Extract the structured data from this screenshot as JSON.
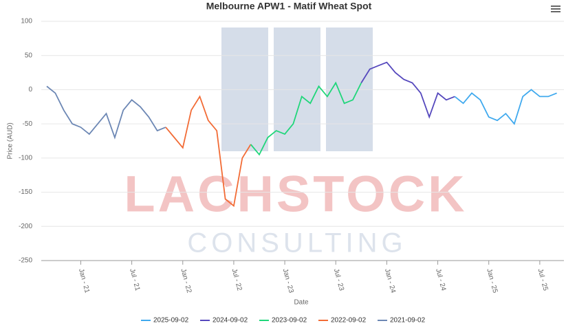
{
  "chart_data": {
    "type": "line",
    "title": "Melbourne APW1 - Matif Wheat Spot",
    "y_label": "Price (AUD)",
    "x_label": "Date",
    "watermark": [
      "LACHSTOCK",
      "CONSULTING"
    ],
    "x": [
      "2020-09",
      "2020-10",
      "2020-11",
      "2020-12",
      "2021-01",
      "2021-02",
      "2021-03",
      "2021-04",
      "2021-05",
      "2021-06",
      "2021-07",
      "2021-08",
      "2021-09",
      "2021-10",
      "2021-11",
      "2021-12",
      "2022-01",
      "2022-02",
      "2022-03",
      "2022-04",
      "2022-05",
      "2022-06",
      "2022-07",
      "2022-08",
      "2022-09",
      "2022-10",
      "2022-11",
      "2022-12",
      "2023-01",
      "2023-02",
      "2023-03",
      "2023-04",
      "2023-05",
      "2023-06",
      "2023-07",
      "2023-08",
      "2023-09",
      "2023-10",
      "2023-11",
      "2023-12",
      "2024-01",
      "2024-02",
      "2024-03",
      "2024-04",
      "2024-05",
      "2024-06",
      "2024-07",
      "2024-08",
      "2024-09",
      "2024-10",
      "2024-11",
      "2024-12",
      "2025-01",
      "2025-02",
      "2025-03",
      "2025-04",
      "2025-05",
      "2025-06",
      "2025-07",
      "2025-08",
      "2025-09"
    ],
    "xticks": [
      {
        "value": "2021-01",
        "label": "Jan - 21"
      },
      {
        "value": "2021-07",
        "label": "Jul - 21"
      },
      {
        "value": "2022-01",
        "label": "Jan - 22"
      },
      {
        "value": "2022-07",
        "label": "Jul - 22"
      },
      {
        "value": "2023-01",
        "label": "Jan - 23"
      },
      {
        "value": "2023-07",
        "label": "Jul - 23"
      },
      {
        "value": "2024-01",
        "label": "Jan - 24"
      },
      {
        "value": "2024-07",
        "label": "Jul - 24"
      },
      {
        "value": "2025-01",
        "label": "Jan - 25"
      },
      {
        "value": "2025-07",
        "label": "Jul - 25"
      }
    ],
    "ylim": [
      -250,
      100
    ],
    "yticks": [
      -250,
      -200,
      -150,
      -100,
      -50,
      0,
      50,
      100
    ],
    "grid": true,
    "series": [
      {
        "name": "2025-09-02",
        "color": "#3fa9ee",
        "values": [
          null,
          null,
          null,
          null,
          null,
          null,
          null,
          null,
          null,
          null,
          null,
          null,
          null,
          null,
          null,
          null,
          null,
          null,
          null,
          null,
          null,
          null,
          null,
          null,
          null,
          null,
          null,
          null,
          null,
          null,
          null,
          null,
          null,
          null,
          null,
          null,
          null,
          null,
          null,
          null,
          null,
          null,
          null,
          null,
          null,
          null,
          null,
          null,
          -10,
          -20,
          -5,
          -15,
          -40,
          -45,
          -35,
          -50,
          -10,
          0,
          -10,
          -10,
          -5
        ]
      },
      {
        "name": "2024-09-02",
        "color": "#5548bd",
        "values": [
          null,
          null,
          null,
          null,
          null,
          null,
          null,
          null,
          null,
          null,
          null,
          null,
          null,
          null,
          null,
          null,
          null,
          null,
          null,
          null,
          null,
          null,
          null,
          null,
          null,
          null,
          null,
          null,
          null,
          null,
          null,
          null,
          null,
          null,
          null,
          null,
          null,
          10,
          30,
          35,
          40,
          25,
          15,
          10,
          -5,
          -40,
          -5,
          -15,
          -10,
          null,
          null,
          null,
          null,
          null,
          null,
          null,
          null,
          null,
          null,
          null,
          null
        ]
      },
      {
        "name": "2023-09-02",
        "color": "#1fd67a",
        "values": [
          null,
          null,
          null,
          null,
          null,
          null,
          null,
          null,
          null,
          null,
          null,
          null,
          null,
          null,
          null,
          null,
          null,
          null,
          null,
          null,
          null,
          null,
          null,
          null,
          -80,
          -95,
          -70,
          -60,
          -65,
          -50,
          -10,
          -20,
          5,
          -10,
          10,
          -20,
          -15,
          10,
          null,
          null,
          null,
          null,
          null,
          null,
          null,
          null,
          null,
          null,
          null,
          null,
          null,
          null,
          null,
          null,
          null,
          null,
          null,
          null,
          null,
          null,
          null
        ]
      },
      {
        "name": "2022-09-02",
        "color": "#f26b35",
        "values": [
          null,
          null,
          null,
          null,
          null,
          null,
          null,
          null,
          null,
          null,
          null,
          null,
          null,
          null,
          -55,
          -70,
          -85,
          -30,
          -10,
          -45,
          -60,
          -160,
          -170,
          -100,
          -80,
          null,
          null,
          null,
          null,
          null,
          null,
          null,
          null,
          null,
          null,
          null,
          null,
          null,
          null,
          null,
          null,
          null,
          null,
          null,
          null,
          null,
          null,
          null,
          null,
          null,
          null,
          null,
          null,
          null,
          null,
          null,
          null,
          null,
          null,
          null,
          null
        ]
      },
      {
        "name": "2021-09-02",
        "color": "#6c87b4",
        "values": [
          5,
          -5,
          -30,
          -50,
          -55,
          -65,
          -50,
          -35,
          -70,
          -30,
          -15,
          -25,
          -40,
          -60,
          -55,
          null,
          null,
          null,
          null,
          null,
          null,
          null,
          null,
          null,
          null,
          null,
          null,
          null,
          null,
          null,
          null,
          null,
          null,
          null,
          null,
          null,
          null,
          null,
          null,
          null,
          null,
          null,
          null,
          null,
          null,
          null,
          null,
          null,
          null,
          null,
          null,
          null,
          null,
          null,
          null,
          null,
          null,
          null,
          null,
          null,
          null
        ]
      }
    ]
  }
}
